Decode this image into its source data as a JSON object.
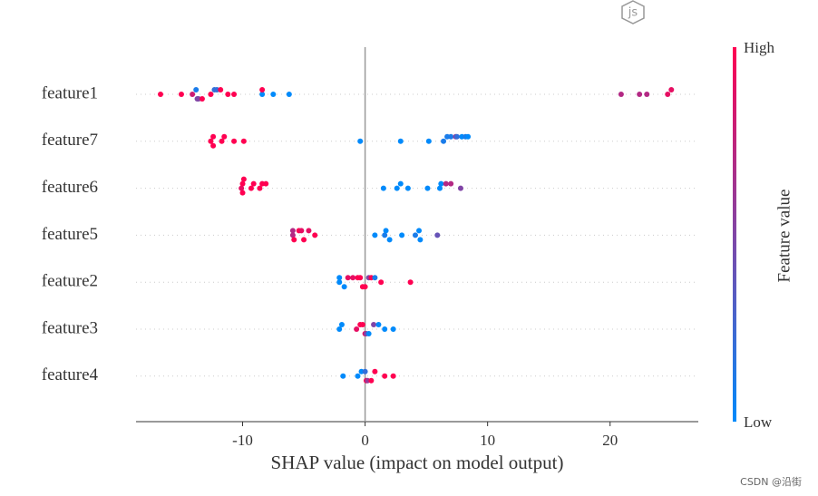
{
  "chart_data": {
    "type": "beeswarm",
    "xlabel": "SHAP value (impact on model output)",
    "xlim": [
      -18.7,
      27.2
    ],
    "xticks": [
      -10,
      0,
      10,
      20
    ],
    "colorbar": {
      "label": "Feature value",
      "high": "High",
      "low": "Low",
      "low_color": "#008afb",
      "high_color": "#ff0051"
    },
    "series": [
      {
        "name": "feature1",
        "shap": [
          -16.7,
          -15.0,
          -14.1,
          -13.8,
          -13.7,
          -13.6,
          -13.3,
          -12.6,
          -12.3,
          -12.1,
          -11.8,
          -11.2,
          -10.7,
          -8.4,
          -8.4,
          -7.5,
          -6.2,
          20.9,
          22.4,
          23.0,
          24.7,
          25.0
        ],
        "feature_value": [
          1,
          1,
          0.8,
          0.1,
          0.5,
          0.5,
          1,
          1,
          0.2,
          0.2,
          1,
          1,
          1,
          0,
          1,
          0,
          0,
          0.7,
          0.7,
          0.7,
          0.9,
          0.9
        ]
      },
      {
        "name": "feature7",
        "shap": [
          -12.6,
          -12.4,
          -12.4,
          -11.7,
          -11.5,
          -10.7,
          -9.9,
          -0.4,
          2.9,
          5.2,
          6.4,
          6.7,
          7.0,
          7.4,
          7.5,
          7.9,
          8.2,
          8.4
        ],
        "feature_value": [
          1,
          1,
          1,
          1,
          1,
          1,
          1,
          0,
          0,
          0,
          0.1,
          0.1,
          0.1,
          0.6,
          0.2,
          0,
          0.1,
          0
        ]
      },
      {
        "name": "feature6",
        "shap": [
          -10.1,
          -10.0,
          -10.0,
          -9.9,
          -9.3,
          -9.1,
          -8.6,
          -8.4,
          -8.1,
          1.5,
          2.6,
          2.9,
          3.5,
          5.1,
          6.1,
          6.2,
          6.6,
          7.0,
          7.8
        ],
        "feature_value": [
          0.9,
          1,
          1,
          1,
          1,
          1,
          1,
          1,
          1,
          0,
          0,
          0,
          0,
          0,
          0,
          0,
          0.7,
          0.7,
          0.5
        ]
      },
      {
        "name": "feature5",
        "shap": [
          -5.9,
          -5.9,
          -5.8,
          -5.4,
          -5.2,
          -5.0,
          -4.6,
          -4.1,
          0.8,
          1.6,
          1.7,
          2.0,
          3.0,
          4.1,
          4.4,
          4.5,
          5.9
        ],
        "feature_value": [
          0.7,
          0.7,
          1,
          1,
          0.9,
          1,
          0.9,
          1,
          0,
          0.1,
          0,
          0,
          0,
          0.1,
          0,
          0,
          0.4
        ]
      },
      {
        "name": "feature2",
        "shap": [
          -2.1,
          -2.1,
          -1.7,
          -1.4,
          -1.0,
          -0.6,
          -0.4,
          -0.2,
          0,
          0.3,
          0.5,
          0.8,
          1.3,
          3.7
        ],
        "feature_value": [
          0,
          0,
          0,
          0.9,
          0.9,
          1,
          1,
          1,
          1,
          0.5,
          1,
          0.1,
          1,
          1
        ]
      },
      {
        "name": "feature3",
        "shap": [
          -2.1,
          -1.9,
          -0.7,
          -0.4,
          -0.2,
          0,
          0.1,
          0.3,
          0.7,
          1.1,
          1.6,
          2.3
        ],
        "feature_value": [
          0,
          0,
          0.9,
          1,
          1,
          0.9,
          0.5,
          0,
          0.5,
          0,
          0,
          0
        ]
      },
      {
        "name": "feature4",
        "shap": [
          -1.8,
          -0.6,
          -0.3,
          0,
          0.1,
          0.2,
          0.5,
          0.8,
          1.6,
          2.3
        ],
        "feature_value": [
          0,
          0,
          0,
          0.2,
          1,
          0.6,
          1,
          1,
          1,
          1
        ]
      }
    ]
  },
  "icon_label": "js",
  "watermark": "CSDN @沿街"
}
